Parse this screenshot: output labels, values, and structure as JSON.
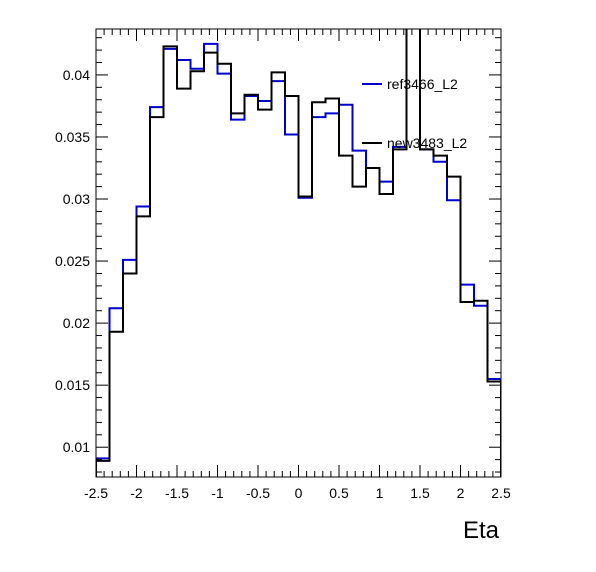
{
  "chart_data": {
    "type": "line",
    "title": "",
    "xlabel": "Eta",
    "ylabel": "",
    "xlim": [
      -2.5,
      2.5
    ],
    "ylim": [
      0.0076,
      0.0437
    ],
    "grid": false,
    "legend_placement": "top-right",
    "x_ticks": [
      -2.5,
      -2,
      -1.5,
      -1,
      -0.5,
      0,
      0.5,
      1,
      1.5,
      2,
      2.5
    ],
    "x_tick_labels": [
      "-2.5",
      "-2",
      "-1.5",
      "-1",
      "-0.5",
      "0",
      "0.5",
      "1",
      "1.5",
      "2",
      "2.5"
    ],
    "y_ticks": [
      0.01,
      0.015,
      0.02,
      0.025,
      0.03,
      0.035,
      0.04
    ],
    "y_tick_labels": [
      "0.01",
      "0.015",
      "0.02",
      "0.025",
      "0.03",
      "0.035",
      "0.04"
    ],
    "bin_edges": [
      -2.5,
      -2.3333,
      -2.1667,
      -2.0,
      -1.8333,
      -1.6667,
      -1.5,
      -1.3333,
      -1.1667,
      -1.0,
      -0.8333,
      -0.6667,
      -0.5,
      -0.3333,
      -0.1667,
      0.0,
      0.1667,
      0.3333,
      0.5,
      0.6667,
      0.8333,
      1.0,
      1.1667,
      1.3333,
      1.5,
      1.6667,
      1.8333,
      2.0,
      2.1667,
      2.3333,
      2.5
    ],
    "series": [
      {
        "name": "ref3466_L2",
        "color": "#0000cc",
        "values": [
          0.0091,
          0.0212,
          0.0251,
          0.0294,
          0.0374,
          0.0421,
          0.0412,
          0.0405,
          0.0425,
          0.0401,
          0.0364,
          0.0383,
          0.0379,
          0.0395,
          0.0352,
          0.0301,
          0.0366,
          0.0369,
          0.0376,
          0.0339,
          0.0325,
          0.0314,
          0.0342,
          0.0438,
          0.034,
          0.033,
          0.0299,
          0.0231,
          0.0214,
          0.0155
        ]
      },
      {
        "name": "new3483_L2",
        "color": "#000000",
        "values": [
          0.0089,
          0.0193,
          0.024,
          0.0286,
          0.0366,
          0.0423,
          0.0389,
          0.0403,
          0.0418,
          0.0409,
          0.0369,
          0.0384,
          0.0372,
          0.0402,
          0.0383,
          0.0302,
          0.0378,
          0.0381,
          0.0335,
          0.031,
          0.0325,
          0.0304,
          0.034,
          0.0438,
          0.034,
          0.0335,
          0.0318,
          0.0217,
          0.0218,
          0.0153
        ]
      }
    ]
  }
}
